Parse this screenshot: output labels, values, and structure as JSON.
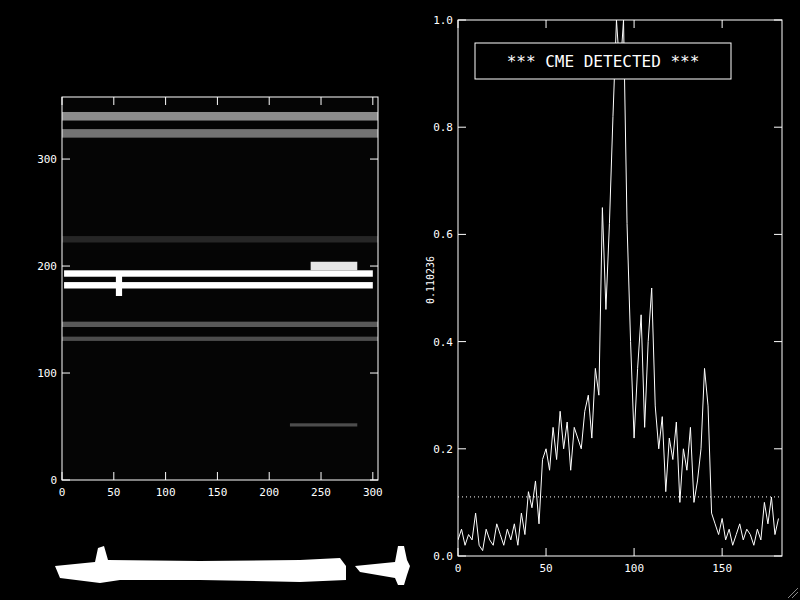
{
  "chart_data": [
    {
      "type": "image",
      "xlim": [
        0,
        305
      ],
      "ylim": [
        0,
        358
      ],
      "xticks": [
        0,
        50,
        100,
        150,
        200,
        250,
        300
      ],
      "yticks": [
        0,
        100,
        200,
        300
      ],
      "bands": [
        {
          "y0": 336,
          "y1": 344,
          "x0": 0,
          "x1": 305,
          "level": 0.55
        },
        {
          "y0": 320,
          "y1": 328,
          "x0": 0,
          "x1": 305,
          "level": 0.45
        },
        {
          "y0": 222,
          "y1": 228,
          "x0": 0,
          "x1": 305,
          "level": 0.15
        },
        {
          "y0": 190,
          "y1": 196,
          "x0": 2,
          "x1": 300,
          "level": 1.0
        },
        {
          "y0": 179,
          "y1": 185,
          "x0": 2,
          "x1": 300,
          "level": 1.0
        },
        {
          "y0": 196,
          "y1": 204,
          "x0": 240,
          "x1": 285,
          "level": 0.9
        },
        {
          "y0": 172,
          "y1": 192,
          "x0": 52,
          "x1": 58,
          "level": 1.0
        },
        {
          "y0": 143,
          "y1": 148,
          "x0": 0,
          "x1": 305,
          "level": 0.35
        },
        {
          "y0": 130,
          "y1": 134,
          "x0": 0,
          "x1": 305,
          "level": 0.3
        },
        {
          "y0": 50,
          "y1": 53,
          "x0": 220,
          "x1": 285,
          "level": 0.3
        }
      ]
    },
    {
      "type": "line",
      "title": "*** CME DETECTED ***",
      "ylabel": "0.110236",
      "threshold": 0.110236,
      "color": "#ffffff",
      "line_style": "solid",
      "xlim": [
        0,
        184
      ],
      "ylim": [
        0,
        1.0
      ],
      "xticks": [
        0,
        50,
        100,
        150
      ],
      "yticks": [
        {
          "value": 0,
          "label": "0.0"
        },
        {
          "value": 0.2,
          "label": "0.2"
        },
        {
          "value": 0.4,
          "label": "0.4"
        },
        {
          "value": 0.6,
          "label": "0.6"
        },
        {
          "value": 0.8,
          "label": "0.8"
        },
        {
          "value": 1.0,
          "label": "1.0"
        }
      ],
      "x": [
        0,
        2,
        4,
        6,
        8,
        10,
        12,
        14,
        16,
        18,
        20,
        22,
        24,
        26,
        28,
        30,
        32,
        34,
        36,
        38,
        40,
        42,
        44,
        46,
        48,
        50,
        52,
        54,
        56,
        58,
        60,
        62,
        64,
        66,
        68,
        70,
        72,
        74,
        76,
        78,
        80,
        82,
        84,
        86,
        88,
        90,
        92,
        94,
        96,
        98,
        100,
        102,
        104,
        106,
        108,
        110,
        112,
        114,
        116,
        118,
        120,
        122,
        124,
        126,
        128,
        130,
        132,
        134,
        136,
        138,
        140,
        142,
        144,
        146,
        148,
        150,
        152,
        154,
        156,
        158,
        160,
        162,
        164,
        166,
        168,
        170,
        172,
        174,
        176,
        178,
        180,
        182
      ],
      "values": [
        0.03,
        0.05,
        0.02,
        0.04,
        0.03,
        0.08,
        0.02,
        0.01,
        0.05,
        0.03,
        0.02,
        0.06,
        0.04,
        0.02,
        0.05,
        0.03,
        0.06,
        0.02,
        0.08,
        0.04,
        0.12,
        0.09,
        0.14,
        0.06,
        0.18,
        0.2,
        0.16,
        0.24,
        0.18,
        0.27,
        0.2,
        0.25,
        0.16,
        0.24,
        0.22,
        0.2,
        0.27,
        0.3,
        0.22,
        0.35,
        0.3,
        0.65,
        0.46,
        0.62,
        0.82,
        1.0,
        0.9,
        1.0,
        0.62,
        0.4,
        0.22,
        0.35,
        0.45,
        0.24,
        0.4,
        0.5,
        0.28,
        0.2,
        0.26,
        0.12,
        0.22,
        0.18,
        0.25,
        0.1,
        0.2,
        0.16,
        0.24,
        0.1,
        0.14,
        0.2,
        0.35,
        0.28,
        0.08,
        0.06,
        0.04,
        0.07,
        0.03,
        0.05,
        0.02,
        0.04,
        0.06,
        0.03,
        0.05,
        0.04,
        0.02,
        0.05,
        0.03,
        0.1,
        0.06,
        0.11,
        0.04,
        0.07
      ]
    }
  ]
}
